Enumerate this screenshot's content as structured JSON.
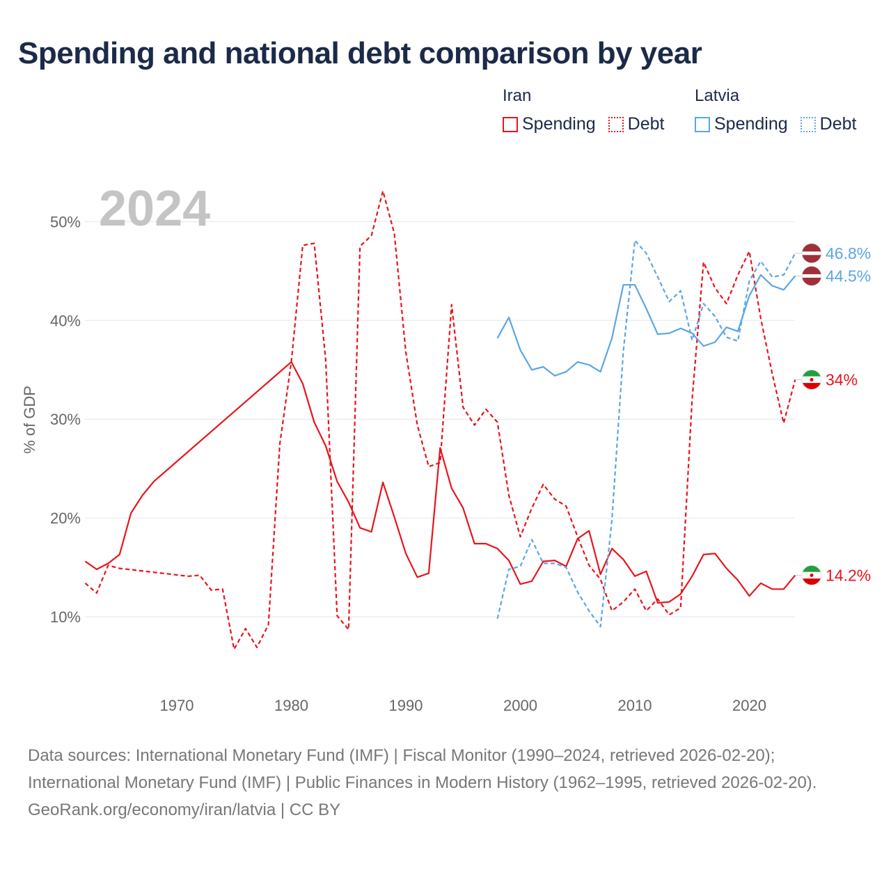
{
  "title": "Spending and national debt comparison by year",
  "year_label": "2024",
  "legend": [
    {
      "country": "Iran",
      "color": "#e8141b",
      "items": [
        {
          "label": "Spending",
          "style": "solid"
        },
        {
          "label": "Debt",
          "style": "dotted"
        }
      ]
    },
    {
      "country": "Latvia",
      "color": "#5aa6e6",
      "items": [
        {
          "label": "Spending",
          "style": "solid"
        },
        {
          "label": "Debt",
          "style": "dotted"
        }
      ]
    }
  ],
  "footer": {
    "sources": "Data sources: International Monetary Fund (IMF) | Fiscal Monitor (1990–2024, retrieved 2026-02-20); International Monetary Fund (IMF) | Public Finances in Modern History (1962–1995, retrieved 2026-02-20).",
    "credit": "GeoRank.org/economy/iran/latvia | CC BY"
  },
  "chart_data": {
    "type": "line",
    "title": "Spending and national debt comparison by year",
    "xlabel": "",
    "ylabel": "% of GDP",
    "xlim": [
      1962,
      2024
    ],
    "ylim": [
      4,
      55
    ],
    "x_ticks": [
      1970,
      1980,
      1990,
      2000,
      2010,
      2020
    ],
    "y_ticks": [
      10,
      20,
      30,
      40,
      50
    ],
    "y_tick_labels": [
      "10%",
      "20%",
      "30%",
      "40%",
      "50%"
    ],
    "grid": true,
    "series": [
      {
        "name": "Iran Spending",
        "country": "Iran",
        "metric": "Spending",
        "color": "#e8141b",
        "dash": "solid",
        "end_label": "14.2%",
        "flag": "iran",
        "points": [
          [
            1962,
            15.6
          ],
          [
            1963,
            14.8
          ],
          [
            1964,
            15.4
          ],
          [
            1965,
            16.3
          ],
          [
            1966,
            20.5
          ],
          [
            1967,
            22.3
          ],
          [
            1968,
            23.7
          ],
          [
            1980,
            35.8
          ],
          [
            1981,
            33.6
          ],
          [
            1982,
            29.7
          ],
          [
            1983,
            27.3
          ],
          [
            1984,
            23.7
          ],
          [
            1985,
            21.6
          ],
          [
            1986,
            19.0
          ],
          [
            1987,
            18.6
          ],
          [
            1988,
            23.6
          ],
          [
            1989,
            20.1
          ],
          [
            1990,
            16.4
          ],
          [
            1991,
            14.0
          ],
          [
            1992,
            14.4
          ],
          [
            1993,
            27.1
          ],
          [
            1994,
            23.0
          ],
          [
            1995,
            21.0
          ],
          [
            1996,
            17.4
          ],
          [
            1997,
            17.4
          ],
          [
            1998,
            16.9
          ],
          [
            1999,
            15.7
          ],
          [
            2000,
            13.3
          ],
          [
            2001,
            13.6
          ],
          [
            2002,
            15.6
          ],
          [
            2003,
            15.7
          ],
          [
            2004,
            15.1
          ],
          [
            2005,
            17.9
          ],
          [
            2006,
            18.7
          ],
          [
            2007,
            14.3
          ],
          [
            2008,
            16.9
          ],
          [
            2009,
            15.8
          ],
          [
            2010,
            14.1
          ],
          [
            2011,
            14.6
          ],
          [
            2012,
            11.4
          ],
          [
            2013,
            11.5
          ],
          [
            2014,
            12.3
          ],
          [
            2015,
            14.1
          ],
          [
            2016,
            16.3
          ],
          [
            2017,
            16.4
          ],
          [
            2018,
            14.9
          ],
          [
            2019,
            13.7
          ],
          [
            2020,
            12.1
          ],
          [
            2021,
            13.4
          ],
          [
            2022,
            12.8
          ],
          [
            2023,
            12.8
          ],
          [
            2024,
            14.2
          ]
        ]
      },
      {
        "name": "Iran Debt",
        "country": "Iran",
        "metric": "Debt",
        "color": "#e8141b",
        "dash": "dashed",
        "end_label": "34%",
        "flag": "iran",
        "points": [
          [
            1962,
            13.4
          ],
          [
            1963,
            12.4
          ],
          [
            1964,
            15.2
          ],
          [
            1965,
            14.9
          ],
          [
            1971,
            14.1
          ],
          [
            1972,
            14.2
          ],
          [
            1973,
            12.7
          ],
          [
            1974,
            12.8
          ],
          [
            1975,
            6.7
          ],
          [
            1976,
            8.8
          ],
          [
            1977,
            6.9
          ],
          [
            1978,
            9.2
          ],
          [
            1979,
            27.5
          ],
          [
            1980,
            35.8
          ],
          [
            1981,
            47.6
          ],
          [
            1982,
            47.8
          ],
          [
            1983,
            36.0
          ],
          [
            1984,
            10.1
          ],
          [
            1985,
            8.7
          ],
          [
            1986,
            47.5
          ],
          [
            1987,
            48.6
          ],
          [
            1988,
            53.1
          ],
          [
            1989,
            48.8
          ],
          [
            1990,
            36.8
          ],
          [
            1991,
            29.4
          ],
          [
            1992,
            25.2
          ],
          [
            1993,
            25.6
          ],
          [
            1994,
            41.6
          ],
          [
            1995,
            31.2
          ],
          [
            1996,
            29.4
          ],
          [
            1997,
            31.0
          ],
          [
            1998,
            29.7
          ],
          [
            1999,
            22.3
          ],
          [
            2000,
            18.1
          ],
          [
            2001,
            21.0
          ],
          [
            2002,
            23.4
          ],
          [
            2003,
            21.9
          ],
          [
            2004,
            21.2
          ],
          [
            2005,
            18.1
          ],
          [
            2006,
            15.2
          ],
          [
            2007,
            13.8
          ],
          [
            2008,
            10.6
          ],
          [
            2009,
            11.5
          ],
          [
            2010,
            12.8
          ],
          [
            2011,
            10.6
          ],
          [
            2012,
            11.8
          ],
          [
            2013,
            10.2
          ],
          [
            2014,
            10.9
          ],
          [
            2015,
            32.0
          ],
          [
            2016,
            45.9
          ],
          [
            2017,
            43.3
          ],
          [
            2018,
            41.7
          ],
          [
            2019,
            44.6
          ],
          [
            2020,
            47.0
          ],
          [
            2021,
            40.2
          ],
          [
            2022,
            34.6
          ],
          [
            2023,
            29.6
          ],
          [
            2024,
            34.0
          ]
        ]
      },
      {
        "name": "Latvia Spending",
        "country": "Latvia",
        "metric": "Spending",
        "color": "#5aa6e6",
        "dash": "solid",
        "end_label": "44.5%",
        "flag": "latvia",
        "points": [
          [
            1998,
            38.2
          ],
          [
            1999,
            40.3
          ],
          [
            2000,
            37.0
          ],
          [
            2001,
            35.0
          ],
          [
            2002,
            35.3
          ],
          [
            2003,
            34.4
          ],
          [
            2004,
            34.8
          ],
          [
            2005,
            35.8
          ],
          [
            2006,
            35.5
          ],
          [
            2007,
            34.8
          ],
          [
            2008,
            38.2
          ],
          [
            2009,
            43.6
          ],
          [
            2010,
            43.6
          ],
          [
            2011,
            41.2
          ],
          [
            2012,
            38.6
          ],
          [
            2013,
            38.7
          ],
          [
            2014,
            39.2
          ],
          [
            2015,
            38.7
          ],
          [
            2016,
            37.4
          ],
          [
            2017,
            37.8
          ],
          [
            2018,
            39.3
          ],
          [
            2019,
            38.9
          ],
          [
            2020,
            42.5
          ],
          [
            2021,
            44.6
          ],
          [
            2022,
            43.5
          ],
          [
            2023,
            43.1
          ],
          [
            2024,
            44.5
          ]
        ]
      },
      {
        "name": "Latvia Debt",
        "country": "Latvia",
        "metric": "Debt",
        "color": "#5aa6e6",
        "dash": "dashed",
        "end_label": "46.8%",
        "flag": "latvia",
        "points": [
          [
            1998,
            9.8
          ],
          [
            1999,
            14.8
          ],
          [
            2000,
            15.1
          ],
          [
            2001,
            17.8
          ],
          [
            2002,
            15.4
          ],
          [
            2003,
            15.4
          ],
          [
            2004,
            15.0
          ],
          [
            2005,
            12.5
          ],
          [
            2006,
            10.6
          ],
          [
            2007,
            9.0
          ],
          [
            2008,
            19.8
          ],
          [
            2009,
            36.9
          ],
          [
            2010,
            48.1
          ],
          [
            2011,
            46.8
          ],
          [
            2012,
            44.4
          ],
          [
            2013,
            41.9
          ],
          [
            2014,
            43.0
          ],
          [
            2015,
            38.0
          ],
          [
            2016,
            41.7
          ],
          [
            2017,
            40.4
          ],
          [
            2018,
            38.3
          ],
          [
            2019,
            37.9
          ],
          [
            2020,
            44.0
          ],
          [
            2021,
            46.0
          ],
          [
            2022,
            44.4
          ],
          [
            2023,
            44.6
          ],
          [
            2024,
            46.8
          ]
        ]
      }
    ]
  }
}
